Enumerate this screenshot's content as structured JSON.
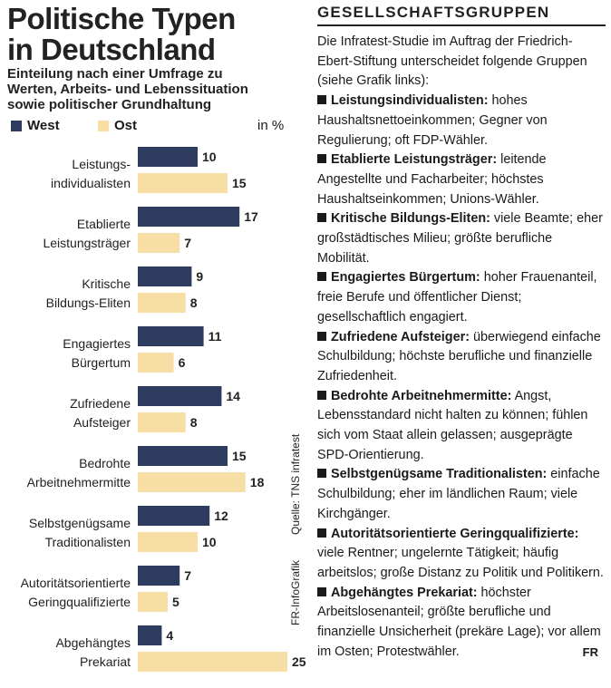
{
  "left": {
    "title_line1": "Politische Typen",
    "title_line2": "in Deutschland",
    "subtitle_line1": "Einteilung nach einer Umfrage zu",
    "subtitle_line2": "Werten, Arbeits- und Lebenssituation",
    "subtitle_line3": "sowie politischer Grundhaltung",
    "unit": "in %",
    "source": "Quelle: TNS infratest",
    "credit": "FR-InfoGrafik"
  },
  "chart_data": {
    "type": "bar",
    "orientation": "horizontal",
    "categories": [
      [
        "Leistungs-",
        "individualisten"
      ],
      [
        "Etablierte",
        "Leistungsträger"
      ],
      [
        "Kritische",
        "Bildungs-Eliten"
      ],
      [
        "Engagiertes",
        "Bürgertum"
      ],
      [
        "Zufriedene",
        "Aufsteiger"
      ],
      [
        "Bedrohte",
        "Arbeitnehmermitte"
      ],
      [
        "Selbstgenügsame",
        "Traditionalisten"
      ],
      [
        "Autoritätsorientierte",
        "Geringqualifizierte"
      ],
      [
        "Abgehängtes",
        "Prekariat"
      ]
    ],
    "series": [
      {
        "name": "West",
        "color": "#2d3c5e",
        "values": [
          10,
          17,
          9,
          11,
          14,
          15,
          12,
          7,
          4
        ]
      },
      {
        "name": "Ost",
        "color": "#f7dea4",
        "values": [
          15,
          7,
          8,
          6,
          8,
          18,
          10,
          5,
          25
        ]
      }
    ],
    "xlim": [
      0,
      25
    ],
    "grid": false,
    "legend_position": "top-left"
  },
  "right": {
    "heading": "GESELLSCHAFTSGRUPPEN",
    "intro": "Die Infratest-Studie im Auftrag der Friedrich-Ebert-Stiftung unterscheidet folgende Gruppen (siehe Grafik links):",
    "groups": [
      {
        "name": "Leistungsindividualisten:",
        "text": " hohes Haushaltsnettoeinkommen; Gegner von Regulierung; oft FDP-Wähler."
      },
      {
        "name": "Etablierte Leistungsträger:",
        "text": " leitende Angestellte und Facharbeiter; höchstes Haushaltseinkommen; Unions-Wähler."
      },
      {
        "name": "Kritische Bildungs-Eliten:",
        "text": " viele Beamte; eher großstädtisches Milieu; größte berufliche Mobilität."
      },
      {
        "name": "Engagiertes Bürgertum:",
        "text": " hoher Frauenanteil, freie Berufe und öffentlicher Dienst; gesellschaftlich engagiert."
      },
      {
        "name": "Zufriedene Aufsteiger:",
        "text": " überwiegend einfache Schulbildung; höchste berufliche und finanzielle Zufriedenheit."
      },
      {
        "name": "Bedrohte Arbeitnehmermitte:",
        "text": " Angst, Lebensstandard nicht halten zu können; fühlen sich vom Staat allein gelassen; ausgeprägte SPD-Orientierung."
      },
      {
        "name": "Selbstgenügsame Traditionalisten:",
        "text": " einfache Schulbildung; eher im ländlichen Raum; viele Kirchgänger."
      },
      {
        "name": "Autoritätsorientierte Geringqualifizierte:",
        "text": " viele Rentner; ungelernte Tätigkeit; häufig arbeitslos; große Distanz zu Politik und Politikern."
      },
      {
        "name": "Abgehängtes Prekariat:",
        "text": " höchster Arbeitslosenanteil; größte berufliche und finanzielle Unsicherheit (prekäre Lage); vor allem im Osten; Protestwähler."
      }
    ],
    "signature": "FR"
  }
}
